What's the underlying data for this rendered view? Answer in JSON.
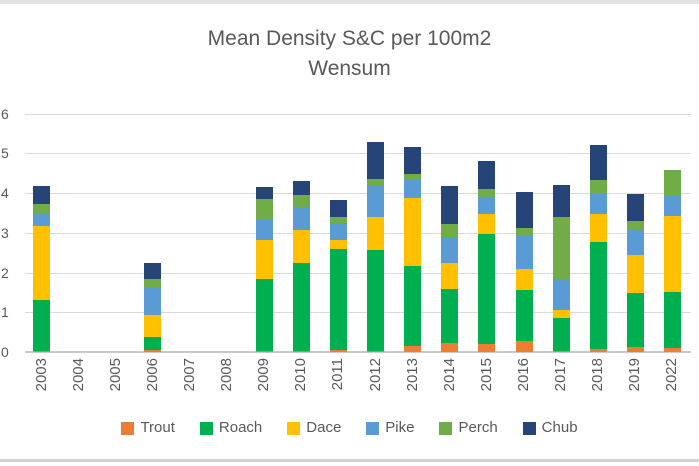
{
  "chart_data": {
    "type": "bar",
    "subtype": "stacked-vertical",
    "title_line1": "Mean Density S&C per 100m2",
    "title_line2": "Wensum",
    "categories": [
      "2003",
      "2004",
      "2005",
      "2006",
      "2007",
      "2008",
      "2009",
      "2010",
      "2011",
      "2012",
      "2013",
      "2014",
      "2015",
      "2016",
      "2017",
      "2018",
      "2019",
      "2022"
    ],
    "series": [
      {
        "name": "Trout",
        "color": "#ED7D31",
        "values": [
          0.02,
          0,
          0,
          0.04,
          0,
          0,
          0.02,
          0.02,
          0.04,
          0.02,
          0.15,
          0.23,
          0.21,
          0.27,
          0.02,
          0.08,
          0.12,
          0.11
        ]
      },
      {
        "name": "Roach",
        "color": "#00B050",
        "values": [
          1.3,
          0,
          0,
          0.33,
          0,
          0,
          1.81,
          2.23,
          2.54,
          2.54,
          2.01,
          1.36,
          2.77,
          1.28,
          0.84,
          2.69,
          1.36,
          1.4
        ]
      },
      {
        "name": "Dace",
        "color": "#FFC000",
        "values": [
          1.84,
          0,
          0,
          0.57,
          0,
          0,
          0.98,
          0.83,
          0.23,
          0.84,
          1.72,
          0.66,
          0.48,
          0.53,
          0.2,
          0.69,
          0.95,
          1.9
        ]
      },
      {
        "name": "Pike",
        "color": "#5B9BD5",
        "values": [
          0.32,
          0,
          0,
          0.68,
          0,
          0,
          0.53,
          0.57,
          0.44,
          0.81,
          0.44,
          0.64,
          0.44,
          0.83,
          0.78,
          0.52,
          0.65,
          0.55
        ]
      },
      {
        "name": "Perch",
        "color": "#70AD47",
        "values": [
          0.25,
          0,
          0,
          0.22,
          0,
          0,
          0.5,
          0.31,
          0.15,
          0.13,
          0.15,
          0.34,
          0.21,
          0.21,
          1.56,
          0.34,
          0.21,
          0.61
        ]
      },
      {
        "name": "Chub",
        "color": "#264478",
        "values": [
          0.44,
          0,
          0,
          0.41,
          0,
          0,
          0.3,
          0.34,
          0.42,
          0.94,
          0.69,
          0.95,
          0.69,
          0.91,
          0.79,
          0.9,
          0.69,
          0
        ]
      }
    ],
    "totals": [
      4.17,
      0,
      0,
      2.25,
      0,
      0,
      4.14,
      4.3,
      3.82,
      5.28,
      5.16,
      4.18,
      4.8,
      4.03,
      4.19,
      5.22,
      3.98,
      4.57
    ],
    "y_axis": {
      "min": 0,
      "max": 6,
      "step": 1,
      "ticks": [
        "0",
        "1",
        "2",
        "3",
        "4",
        "5",
        "6"
      ]
    },
    "grid": true,
    "legend_position": "bottom",
    "legend_entries": [
      "Trout",
      "Roach",
      "Dace",
      "Pike",
      "Perch",
      "Chub"
    ]
  },
  "colors": {
    "title_text": "#595959",
    "axis_text": "#595959",
    "gridline": "#D9D9D9",
    "axis_line": "#C9C9C9",
    "background": "#FFFFFF",
    "frame_top": "#E3E3E3",
    "frame_bottom": "#D2D2D2"
  }
}
